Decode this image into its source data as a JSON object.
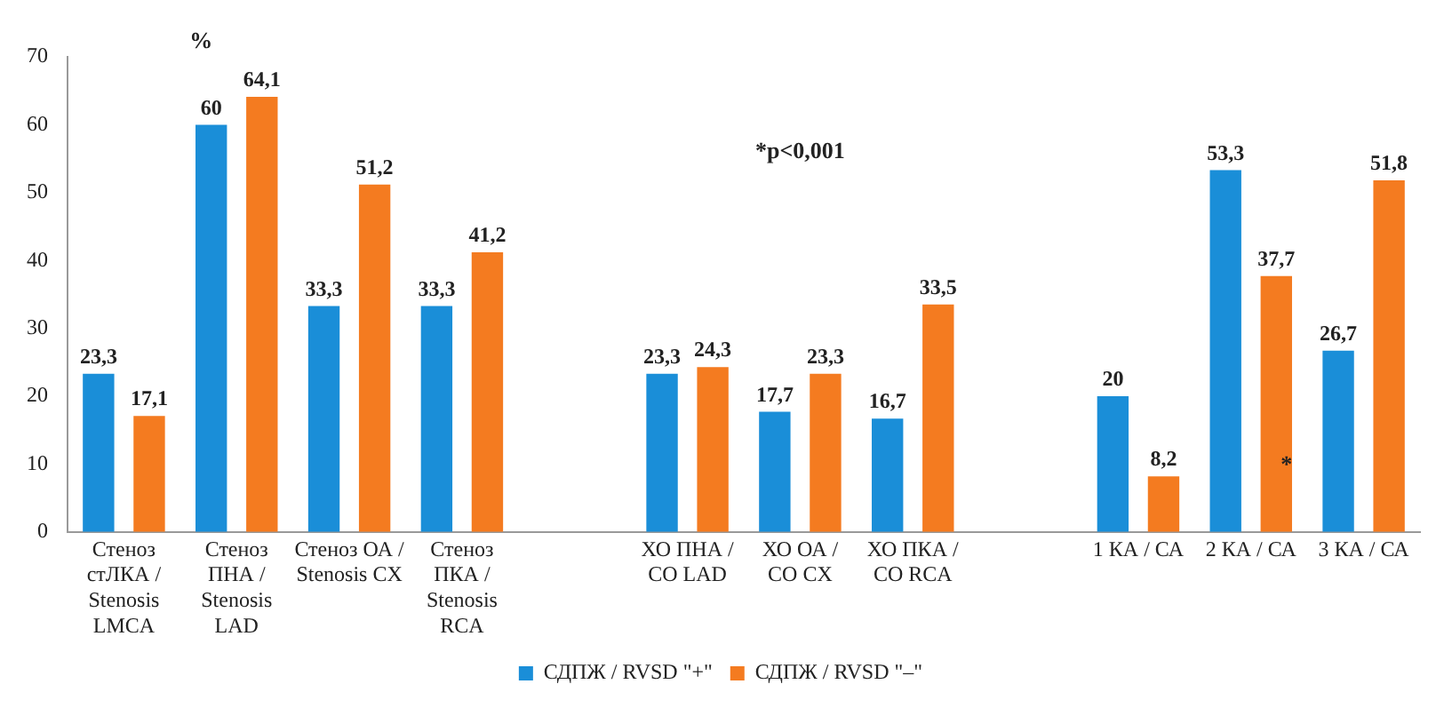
{
  "chart_data": {
    "type": "bar",
    "categories": [
      "Стеноз стЛКА / Stenosis LMCA",
      "Стеноз ПНА / Stenosis LAD",
      "Стеноз ОА / Stenosis CX",
      "Стеноз ПКА / Stenosis RCA",
      null,
      "ХО ПНА / CO LAD",
      "ХО ОА / CO CX",
      "ХО ПКА / CO RCA",
      null,
      "1 КА / СА",
      "2 КА / СА",
      "3 КА / СА"
    ],
    "series": [
      {
        "name": "СДПЖ / RVSD \"+\"",
        "color": "#1a8ed8",
        "values": [
          23.3,
          60,
          33.3,
          33.3,
          null,
          23.3,
          17.7,
          16.7,
          null,
          20,
          53.3,
          26.7
        ],
        "value_labels": [
          "23,3",
          "60",
          "33,3",
          "33,3",
          null,
          "23,3",
          "17,7",
          "16,7",
          null,
          "20",
          "53,3",
          "26,7"
        ]
      },
      {
        "name": "СДПЖ / RVSD \"–\"",
        "color": "#f47b20",
        "values": [
          17.1,
          64.1,
          51.2,
          41.2,
          null,
          24.3,
          23.3,
          33.5,
          null,
          8.2,
          37.7,
          51.8
        ],
        "value_labels": [
          "17,1",
          "64,1",
          "51,2",
          "41,2",
          null,
          "24,3",
          "23,3",
          "33,5",
          null,
          "8,2",
          "37,7",
          "51,8"
        ]
      }
    ],
    "ylim": [
      0,
      70
    ],
    "yticks": [
      0,
      10,
      20,
      30,
      40,
      50,
      60,
      70
    ],
    "legend": "bottom",
    "annotations": [
      "%",
      "*p<0,001",
      "*"
    ]
  }
}
